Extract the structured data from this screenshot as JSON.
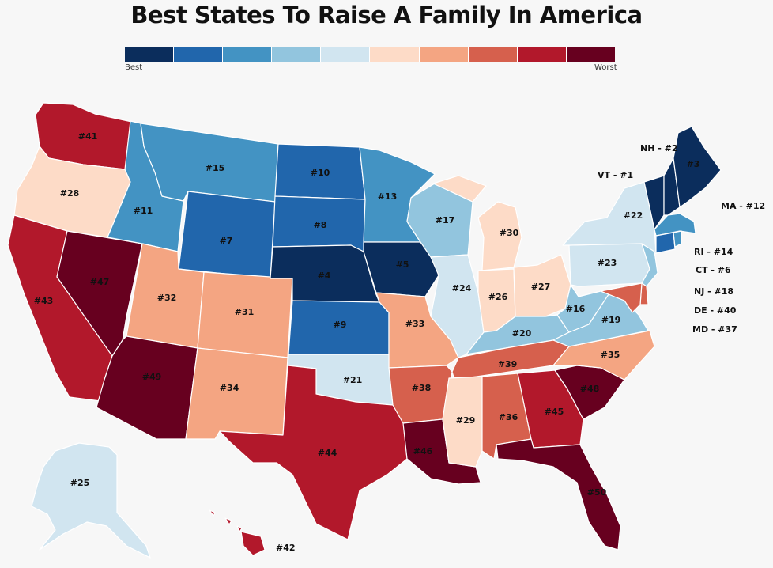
{
  "title": "Best States To Raise A Family In America",
  "legend": {
    "colors": [
      "#0b2d5c",
      "#2166ac",
      "#4393c3",
      "#92c5de",
      "#d1e5f0",
      "#fddbc7",
      "#f4a582",
      "#d6604d",
      "#b2182b",
      "#67001f"
    ],
    "best_label": "Best",
    "worst_label": "Worst"
  },
  "states": {
    "WA": {
      "rank": 41,
      "label": "#41"
    },
    "OR": {
      "rank": 28,
      "label": "#28"
    },
    "CA": {
      "rank": 43,
      "label": "#43"
    },
    "NV": {
      "rank": 47,
      "label": "#47"
    },
    "ID": {
      "rank": 11,
      "label": "#11"
    },
    "MT": {
      "rank": 15,
      "label": "#15"
    },
    "WY": {
      "rank": 7,
      "label": "#7"
    },
    "UT": {
      "rank": 32,
      "label": "#32"
    },
    "AZ": {
      "rank": 49,
      "label": "#49"
    },
    "CO": {
      "rank": 31,
      "label": "#31"
    },
    "NM": {
      "rank": 34,
      "label": "#34"
    },
    "ND": {
      "rank": 10,
      "label": "#10"
    },
    "SD": {
      "rank": 8,
      "label": "#8"
    },
    "NE": {
      "rank": 4,
      "label": "#4"
    },
    "KS": {
      "rank": 9,
      "label": "#9"
    },
    "OK": {
      "rank": 21,
      "label": "#21"
    },
    "TX": {
      "rank": 44,
      "label": "#44"
    },
    "MN": {
      "rank": 13,
      "label": "#13"
    },
    "IA": {
      "rank": 5,
      "label": "#5"
    },
    "MO": {
      "rank": 33,
      "label": "#33"
    },
    "AR": {
      "rank": 38,
      "label": "#38"
    },
    "LA": {
      "rank": 46,
      "label": "#46"
    },
    "WI": {
      "rank": 17,
      "label": "#17"
    },
    "IL": {
      "rank": 24,
      "label": "#24"
    },
    "MI": {
      "rank": 30,
      "label": "#30"
    },
    "IN": {
      "rank": 26,
      "label": "#26"
    },
    "OH": {
      "rank": 27,
      "label": "#27"
    },
    "KY": {
      "rank": 20,
      "label": "#20"
    },
    "TN": {
      "rank": 39,
      "label": "#39"
    },
    "MS": {
      "rank": 29,
      "label": "#29"
    },
    "AL": {
      "rank": 36,
      "label": "#36"
    },
    "GA": {
      "rank": 45,
      "label": "#45"
    },
    "FL": {
      "rank": 50,
      "label": "#50"
    },
    "SC": {
      "rank": 48,
      "label": "#48"
    },
    "NC": {
      "rank": 35,
      "label": "#35"
    },
    "VA": {
      "rank": 19,
      "label": "#19"
    },
    "WV": {
      "rank": 16,
      "label": "#16"
    },
    "PA": {
      "rank": 23,
      "label": "#23"
    },
    "NY": {
      "rank": 22,
      "label": "#22"
    },
    "VT": {
      "rank": 1,
      "label": "VT - #1"
    },
    "NH": {
      "rank": 2,
      "label": "NH - #2"
    },
    "ME": {
      "rank": 3,
      "label": "#3"
    },
    "MA": {
      "rank": 12,
      "label": "MA - #12"
    },
    "RI": {
      "rank": 14,
      "label": "RI - #14"
    },
    "CT": {
      "rank": 6,
      "label": "CT - #6"
    },
    "NJ": {
      "rank": 18,
      "label": "NJ - #18"
    },
    "DE": {
      "rank": 40,
      "label": "DE - #40"
    },
    "MD": {
      "rank": 37,
      "label": "MD - #37"
    },
    "AK": {
      "rank": 25,
      "label": "#25"
    },
    "HI": {
      "rank": 42,
      "label": "#42"
    }
  }
}
